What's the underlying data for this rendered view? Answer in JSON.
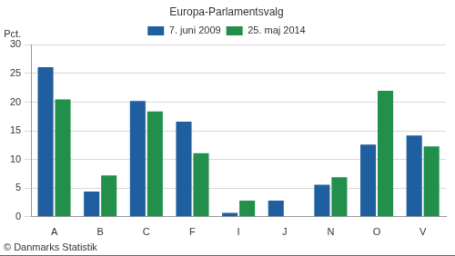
{
  "chart_data": {
    "type": "bar",
    "title": "Europa-Parlamentsvalg",
    "ylabel": "Pct.",
    "source": "© Danmarks Statistik",
    "categories": [
      "A",
      "B",
      "C",
      "F",
      "I",
      "J",
      "N",
      "O",
      "V"
    ],
    "series": [
      {
        "name": "7. juni 2009",
        "color": "#1f5fa0",
        "values": [
          26.1,
          4.4,
          20.2,
          16.6,
          0.7,
          2.8,
          5.6,
          12.6,
          14.2
        ]
      },
      {
        "name": "25. maj 2014",
        "color": "#22904a",
        "values": [
          20.5,
          7.2,
          18.4,
          11.1,
          2.8,
          null,
          6.9,
          22.0,
          12.3
        ]
      }
    ],
    "ylim": [
      0,
      30
    ],
    "yticks": [
      0,
      5,
      10,
      15,
      20,
      25,
      30
    ],
    "grid": true,
    "legend": "top"
  }
}
